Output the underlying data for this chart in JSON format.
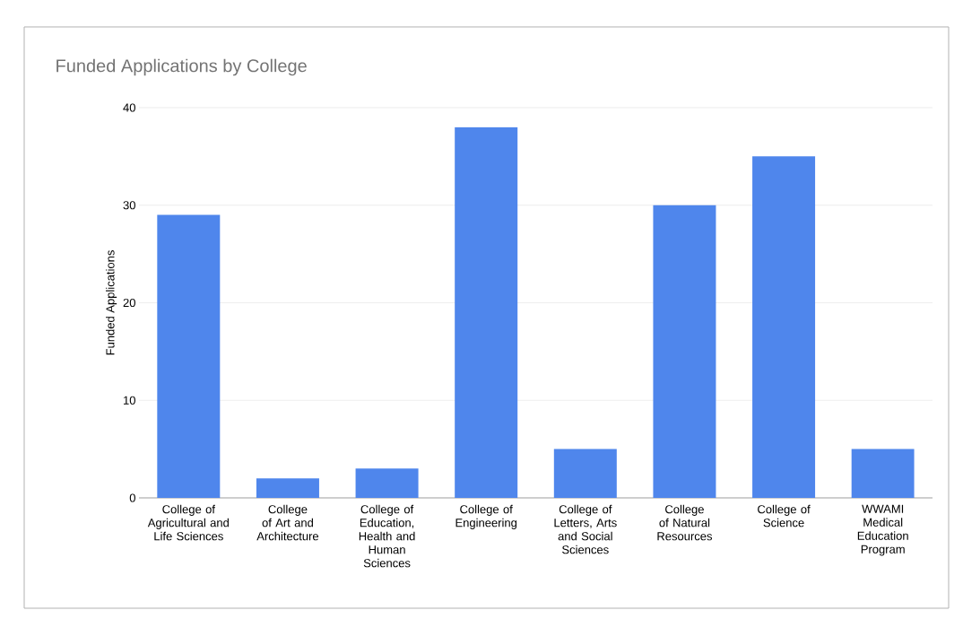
{
  "chart_data": {
    "type": "bar",
    "title": "Funded Applications by College",
    "ylabel": "Funded Applications",
    "categories": [
      "College of Agricultural and Life Sciences",
      "College of Art and Architecture",
      "College of Education, Health and Human Sciences",
      "College of Engineering",
      "College of Letters, Arts and Social Sciences",
      "College of Natural Resources",
      "College of Science",
      "WWAMI Medical Education Program"
    ],
    "values": [
      29,
      2,
      3,
      38,
      5,
      30,
      35,
      5
    ],
    "color": "#4f86ec",
    "ylim": [
      0,
      40
    ],
    "yticks": [
      0,
      10,
      20,
      30,
      40
    ],
    "grid": "y"
  }
}
